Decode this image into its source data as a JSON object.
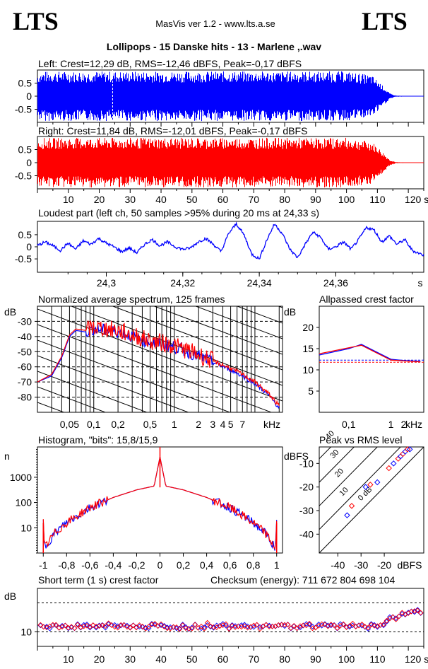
{
  "header": {
    "logo_left": "LTS",
    "logo_right": "LTS",
    "app": "MasVis ver 1.2 - www.lts.a.se",
    "title": "Lollipops - 15 Danske hits  - 13 - Marlene ,.wav"
  },
  "colors": {
    "left": "#0000ff",
    "right": "#ff0000",
    "grid": "#000000",
    "bg": "#ffffff"
  },
  "chart_data": [
    {
      "id": "left",
      "type": "area",
      "title": "Left: Crest=12,29 dB, RMS=-12,46 dBFS, Peak=-0,17 dBFS",
      "yticks": [
        "0.5",
        "0",
        "-0.5"
      ],
      "ylim": [
        -1,
        1
      ],
      "xlim": [
        0,
        125
      ],
      "envelope": {
        "t": [
          0,
          2,
          5,
          20,
          40,
          60,
          80,
          100,
          108,
          110,
          112,
          114,
          116,
          125
        ],
        "amp": [
          0.9,
          0.95,
          0.95,
          0.95,
          0.95,
          0.95,
          0.95,
          0.95,
          0.8,
          0.6,
          0.35,
          0.1,
          0.02,
          0
        ]
      },
      "marker_x": 24.33,
      "color": "#0000ff"
    },
    {
      "id": "right",
      "type": "area",
      "title": "Right: Crest=11,84 dB, RMS=-12,01 dBFS, Peak=-0,17 dBFS",
      "yticks": [
        "0.5",
        "0",
        "-0.5"
      ],
      "ylim": [
        -1,
        1
      ],
      "xlim": [
        0,
        125
      ],
      "xticks": [
        "10",
        "20",
        "30",
        "40",
        "50",
        "60",
        "70",
        "80",
        "90",
        "100",
        "110",
        "120 s"
      ],
      "envelope": {
        "t": [
          0,
          2,
          5,
          20,
          40,
          60,
          80,
          100,
          108,
          110,
          112,
          114,
          116,
          125
        ],
        "amp": [
          0.9,
          0.95,
          0.95,
          0.95,
          0.95,
          0.95,
          0.95,
          0.95,
          0.8,
          0.6,
          0.35,
          0.1,
          0.02,
          0
        ]
      },
      "color": "#ff0000"
    },
    {
      "id": "loudest",
      "type": "line",
      "title": "Loudest part (left  ch, 50 samples >95% during 20 ms at 24,33 s)",
      "yticks": [
        "0.5",
        "0",
        "-0.5"
      ],
      "xticks": [
        "24,3",
        "24,32",
        "24,34",
        "24,36",
        "s"
      ],
      "xlim": [
        24.282,
        24.383
      ],
      "ylim": [
        -1,
        1
      ],
      "points": [
        [
          24.282,
          0.05
        ],
        [
          24.284,
          0.2
        ],
        [
          24.286,
          0.05
        ],
        [
          24.288,
          -0.15
        ],
        [
          24.29,
          0.15
        ],
        [
          24.292,
          -0.1
        ],
        [
          24.294,
          0.25
        ],
        [
          24.296,
          0.1
        ],
        [
          24.298,
          0.35
        ],
        [
          24.3,
          0.15
        ],
        [
          24.302,
          0.0
        ],
        [
          24.304,
          -0.2
        ],
        [
          24.306,
          -0.05
        ],
        [
          24.308,
          -0.25
        ],
        [
          24.31,
          0.1
        ],
        [
          24.312,
          0.3
        ],
        [
          24.314,
          0.05
        ],
        [
          24.316,
          0.2
        ],
        [
          24.318,
          0.0
        ],
        [
          24.32,
          -0.1
        ],
        [
          24.322,
          -0.05
        ],
        [
          24.324,
          0.2
        ],
        [
          24.326,
          0.35
        ],
        [
          24.328,
          0.1
        ],
        [
          24.33,
          -0.2
        ],
        [
          24.332,
          0.55
        ],
        [
          24.334,
          0.95
        ],
        [
          24.336,
          0.5
        ],
        [
          24.338,
          -0.3
        ],
        [
          24.34,
          -0.5
        ],
        [
          24.342,
          0.3
        ],
        [
          24.344,
          0.95
        ],
        [
          24.346,
          0.55
        ],
        [
          24.348,
          -0.1
        ],
        [
          24.35,
          -0.45
        ],
        [
          24.352,
          0.1
        ],
        [
          24.354,
          0.6
        ],
        [
          24.356,
          0.4
        ],
        [
          24.358,
          -0.1
        ],
        [
          24.36,
          0.0
        ],
        [
          24.362,
          0.2
        ],
        [
          24.364,
          -0.1
        ],
        [
          24.366,
          0.3
        ],
        [
          24.368,
          0.8
        ],
        [
          24.37,
          0.7
        ],
        [
          24.372,
          0.2
        ],
        [
          24.374,
          0.45
        ],
        [
          24.376,
          0.1
        ],
        [
          24.378,
          0.3
        ],
        [
          24.38,
          -0.15
        ],
        [
          24.383,
          -0.35
        ]
      ],
      "color": "#0000ff"
    },
    {
      "id": "spectrum",
      "type": "line",
      "title": "Normalized average spectrum, 125 frames",
      "ylabel": "dB",
      "yticks": [
        "-30",
        "-40",
        "-50",
        "-60",
        "-70",
        "-80"
      ],
      "xticks": [
        "0,05",
        "0,1",
        "0,2",
        "0,5",
        "1",
        "2",
        "3",
        "4",
        "5",
        "7",
        "kHz"
      ],
      "xlim_khz": [
        0.02,
        22
      ],
      "ylim": [
        -90,
        -20
      ],
      "x_scale": "log",
      "series": [
        {
          "color": "#0000ff",
          "points": [
            [
              0.02,
              -70
            ],
            [
              0.03,
              -66
            ],
            [
              0.04,
              -54
            ],
            [
              0.05,
              -40
            ],
            [
              0.06,
              -36
            ],
            [
              0.08,
              -37
            ],
            [
              0.1,
              -35
            ],
            [
              0.15,
              -36
            ],
            [
              0.2,
              -37
            ],
            [
              0.3,
              -40
            ],
            [
              0.5,
              -44
            ],
            [
              0.7,
              -45
            ],
            [
              1,
              -47
            ],
            [
              2,
              -53
            ],
            [
              3,
              -57
            ],
            [
              5,
              -62
            ],
            [
              7,
              -66
            ],
            [
              10,
              -71
            ],
            [
              15,
              -79
            ],
            [
              20,
              -87
            ]
          ]
        },
        {
          "color": "#ff0000",
          "points": [
            [
              0.02,
              -70
            ],
            [
              0.03,
              -65
            ],
            [
              0.04,
              -53
            ],
            [
              0.05,
              -39
            ],
            [
              0.06,
              -35
            ],
            [
              0.08,
              -36
            ],
            [
              0.1,
              -34
            ],
            [
              0.15,
              -35
            ],
            [
              0.2,
              -36
            ],
            [
              0.3,
              -39
            ],
            [
              0.5,
              -43
            ],
            [
              0.7,
              -44
            ],
            [
              1,
              -46
            ],
            [
              2,
              -52
            ],
            [
              3,
              -56
            ],
            [
              5,
              -61
            ],
            [
              7,
              -65
            ],
            [
              10,
              -70
            ],
            [
              15,
              -78
            ],
            [
              20,
              -86
            ]
          ]
        }
      ]
    },
    {
      "id": "crest",
      "type": "line",
      "title": "Allpassed crest factor",
      "ylabel": "dB",
      "yticks": [
        "20",
        "15",
        "10",
        "5"
      ],
      "xticks": [
        "0,1",
        "1",
        "2",
        "kHz"
      ],
      "ylim": [
        0,
        25
      ],
      "x_scale": "log",
      "series": [
        {
          "color": "#0000ff",
          "points": [
            [
              0.02,
              13.5
            ],
            [
              0.1,
              15
            ],
            [
              0.2,
              16
            ],
            [
              0.5,
              14
            ],
            [
              1,
              12.5
            ],
            [
              2,
              12.2
            ],
            [
              5,
              12
            ]
          ],
          "ref": 12.3
        },
        {
          "color": "#ff0000",
          "points": [
            [
              0.02,
              13.8
            ],
            [
              0.1,
              15.2
            ],
            [
              0.2,
              15.8
            ],
            [
              0.5,
              13.8
            ],
            [
              1,
              12.3
            ],
            [
              2,
              12.1
            ],
            [
              5,
              11.9
            ]
          ],
          "ref": 11.8
        }
      ]
    },
    {
      "id": "histogram",
      "type": "line",
      "title": "Histogram, \"bits\": 15,8/15,9",
      "ylabel": "n",
      "yticks": [
        "1000",
        "100",
        "10"
      ],
      "xticks": [
        "-1",
        "-0,8",
        "-0,6",
        "-0,4",
        "-0,2",
        "0",
        "0,2",
        "0,4",
        "0,6",
        "0,8",
        "1"
      ],
      "xlim": [
        -1.05,
        1.05
      ],
      "y_scale": "log",
      "ylim_log": [
        0,
        4.2
      ],
      "points": [
        [
          -1,
          1.2
        ],
        [
          -0.99,
          0.2
        ],
        [
          -0.9,
          0.8
        ],
        [
          -0.8,
          1.2
        ],
        [
          -0.6,
          1.8
        ],
        [
          -0.4,
          2.2
        ],
        [
          -0.2,
          2.5
        ],
        [
          -0.05,
          2.65
        ],
        [
          0,
          3.8
        ],
        [
          0.05,
          2.65
        ],
        [
          0.2,
          2.5
        ],
        [
          0.4,
          2.2
        ],
        [
          0.6,
          1.8
        ],
        [
          0.8,
          1.2
        ],
        [
          0.9,
          0.8
        ],
        [
          0.99,
          0.2
        ],
        [
          1,
          1.2
        ]
      ]
    },
    {
      "id": "peakrms",
      "type": "scatter",
      "title": "Peak vs RMS level",
      "ylabel": "dBFS",
      "yticks": [
        "-10",
        "-20",
        "-30",
        "-40"
      ],
      "xticks": [
        "-40",
        "-30",
        "-20",
        "dBFS"
      ],
      "xlim": [
        -48,
        -3
      ],
      "ylim": [
        -48,
        -3
      ],
      "diag_labels": [
        "40",
        "30",
        "20",
        "10",
        "0 dB"
      ],
      "points": [
        [
          -36,
          -32
        ],
        [
          -34,
          -28
        ],
        [
          -28,
          -20
        ],
        [
          -26,
          -19
        ],
        [
          -23,
          -18
        ],
        [
          -18,
          -12
        ],
        [
          -16,
          -10
        ],
        [
          -14,
          -8
        ],
        [
          -13,
          -7
        ],
        [
          -12,
          -6
        ],
        [
          -11,
          -5
        ],
        [
          -10,
          -4
        ],
        [
          -9,
          -4
        ]
      ]
    },
    {
      "id": "shortcrest",
      "type": "scatter",
      "title": "Short term (1 s) crest factor",
      "checksum": "Checksum (energy):   711 672 804 698 104",
      "ylabel": "dB",
      "yticks": [
        "10"
      ],
      "xticks": [
        "10",
        "20",
        "30",
        "40",
        "50",
        "60",
        "70",
        "80",
        "90",
        "100",
        "110",
        "120 s"
      ],
      "xlim": [
        0,
        125
      ],
      "ylim": [
        5,
        25
      ],
      "base_level": 12
    }
  ]
}
